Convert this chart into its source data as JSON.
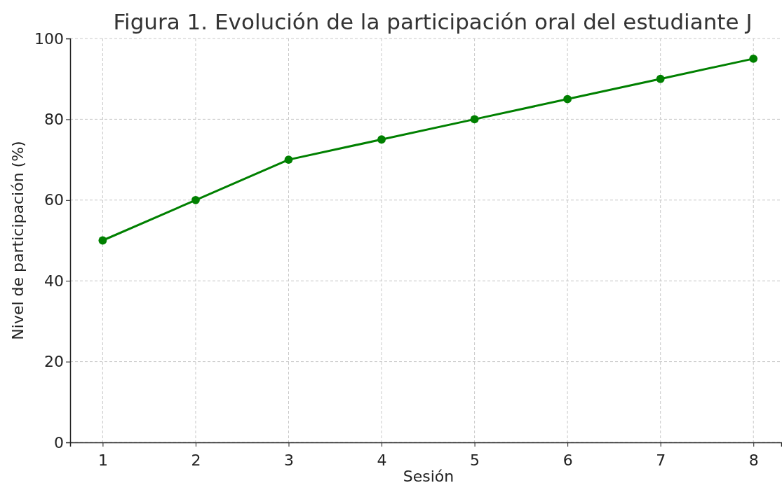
{
  "chart_data": {
    "type": "line",
    "title": "Figura 1. Evolución de la participación oral del estudiante J",
    "xlabel": "Sesión",
    "ylabel": "Nivel de participación (%)",
    "x": [
      1,
      2,
      3,
      4,
      5,
      6,
      7,
      8
    ],
    "series": [
      {
        "color": "#008000",
        "values": [
          50,
          60,
          70,
          75,
          80,
          85,
          90,
          95
        ]
      }
    ],
    "xlim": [
      0.65,
      8.3
    ],
    "xticks": [
      1,
      2,
      3,
      4,
      5,
      6,
      7,
      8
    ],
    "ylim": [
      0,
      100
    ],
    "yticks": [
      0,
      20,
      40,
      60,
      80,
      100
    ],
    "grid": true,
    "marker": "circle",
    "line_style": "solid"
  }
}
